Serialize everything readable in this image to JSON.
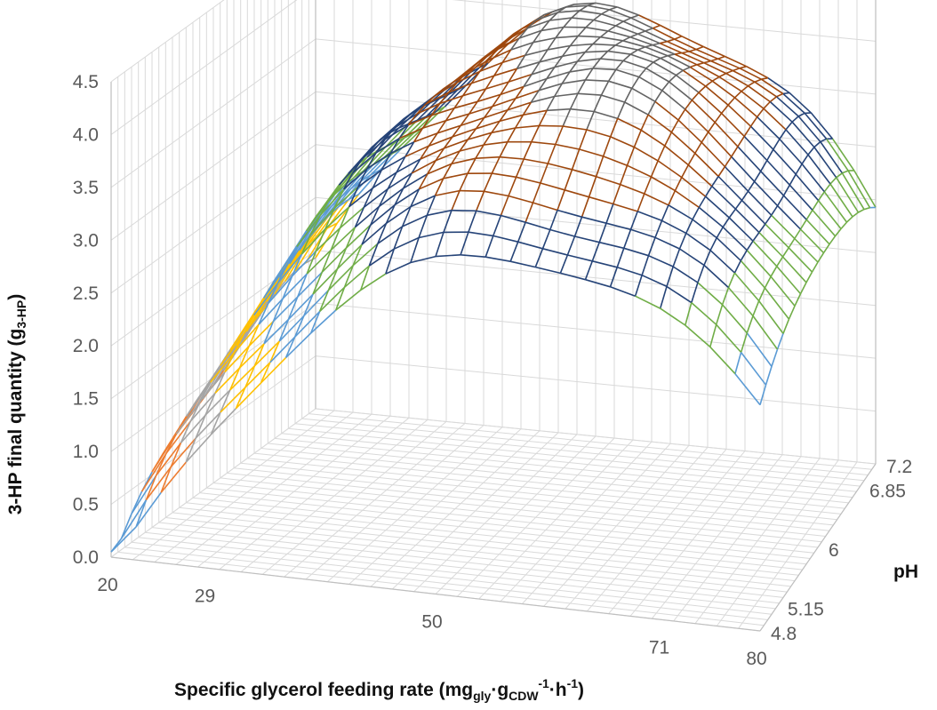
{
  "chart_data": {
    "type": "surface",
    "title": "",
    "xlabel": "Specific glycerol feeding rate (mg",
    "xlabel_sub_gly": "gly",
    "xlabel_dot1": "·g",
    "xlabel_sub_cdw": "CDW",
    "xlabel_sup1": "-1",
    "xlabel_dot2": "·h",
    "xlabel_sup2": "-1",
    "xlabel_close": ")",
    "ylabel": "pH",
    "zlabel_main": "3-HP final quantity (g",
    "zlabel_sub": "3-HP",
    "zlabel_close": ")",
    "x_ticks": [
      "20",
      "29",
      "50",
      "71",
      "80"
    ],
    "x_tick_values": [
      20,
      29,
      50,
      71,
      80
    ],
    "y_ticks": [
      "4.8",
      "5.15",
      "6",
      "6.85",
      "7.2"
    ],
    "y_tick_values": [
      4.8,
      5.15,
      6,
      6.85,
      7.2
    ],
    "z_ticks": [
      "0.0",
      "0.5",
      "1.0",
      "1.5",
      "2.0",
      "2.5",
      "3.0",
      "3.5",
      "4.0",
      "4.5"
    ],
    "xlim": [
      20,
      80
    ],
    "ylim": [
      4.8,
      7.2
    ],
    "zlim": [
      0,
      4.5
    ],
    "grid": true,
    "surface_model": {
      "description_free": true,
      "peak_value": 4.2,
      "peak_x": 55,
      "peak_y": 6.5
    },
    "color_bands": [
      {
        "range": [
          0.0,
          0.5
        ],
        "color": "#5b9bd5"
      },
      {
        "range": [
          0.5,
          1.0
        ],
        "color": "#ed7d31"
      },
      {
        "range": [
          1.0,
          1.5
        ],
        "color": "#a5a5a5"
      },
      {
        "range": [
          1.5,
          2.0
        ],
        "color": "#ffc000"
      },
      {
        "range": [
          2.0,
          2.5
        ],
        "color": "#5b9bd5"
      },
      {
        "range": [
          2.5,
          3.0
        ],
        "color": "#70ad47"
      },
      {
        "range": [
          3.0,
          3.5
        ],
        "color": "#264478"
      },
      {
        "range": [
          3.5,
          4.0
        ],
        "color": "#9e480e"
      },
      {
        "range": [
          4.0,
          4.5
        ],
        "color": "#636363"
      }
    ]
  }
}
